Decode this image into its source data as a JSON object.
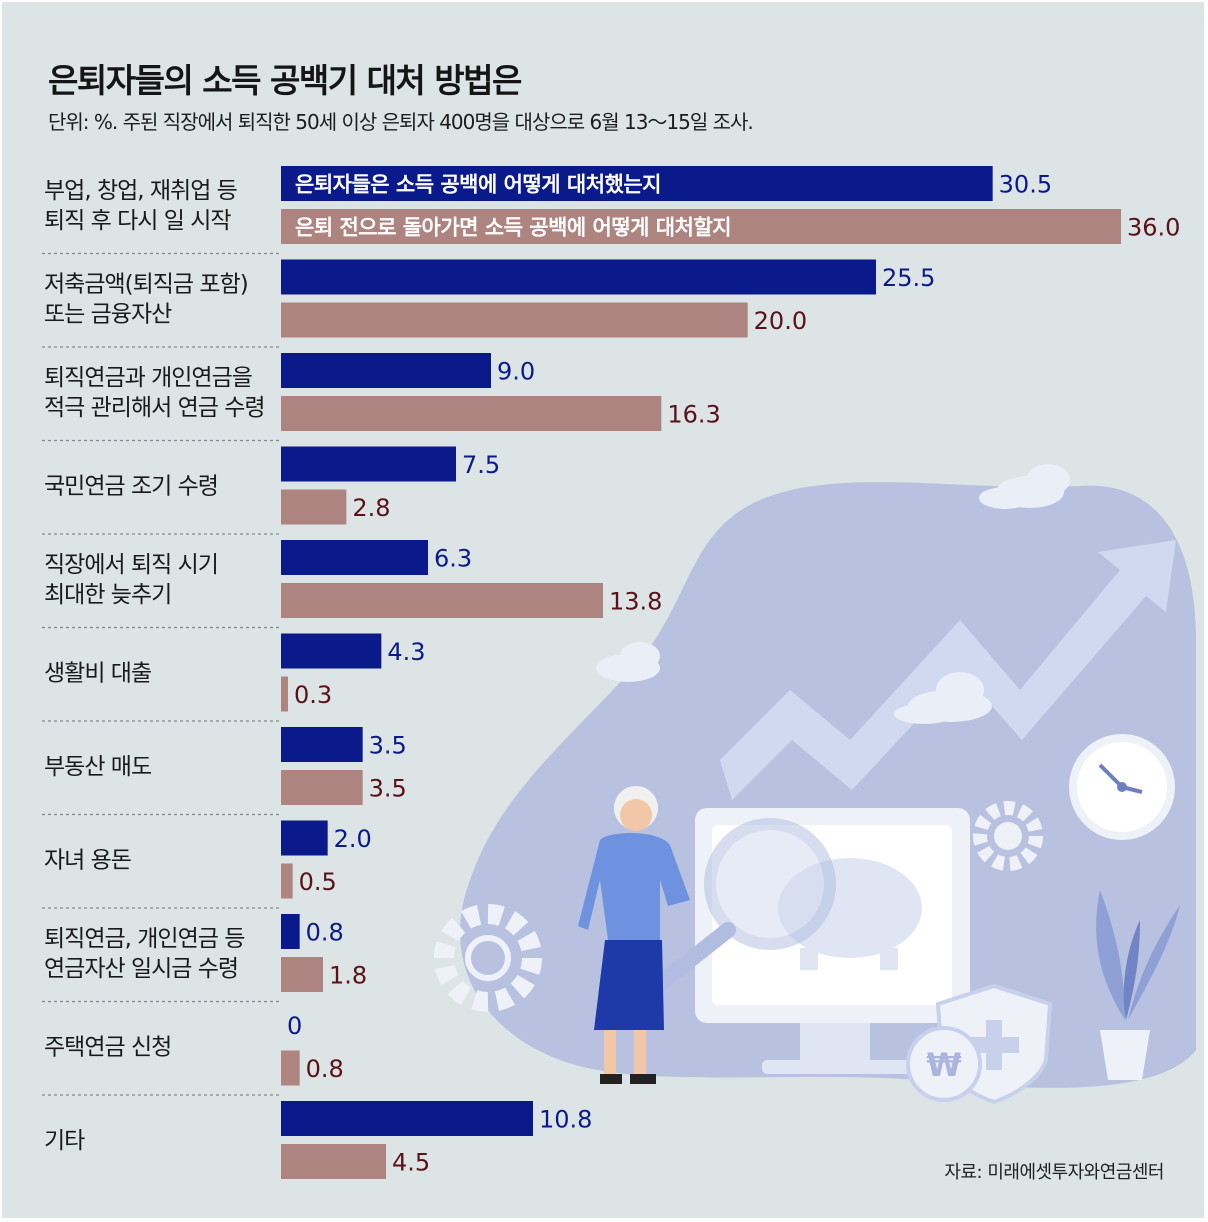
{
  "title": "은퇴자들의 소득 공백기 대처 방법은",
  "subtitle": "단위: %. 주된 직장에서 퇴직한 50세 이상 은퇴자 400명을 대상으로 6월 13～15일 조사.",
  "source": "자료: 미래에셋투자와연금센터",
  "chart_data": {
    "type": "bar",
    "orientation": "horizontal",
    "unit": "%",
    "categories": [
      [
        "부업, 창업, 재취업 등",
        "퇴직 후 다시 일 시작"
      ],
      [
        "저축금액(퇴직금 포함)",
        "또는 금융자산"
      ],
      [
        "퇴직연금과 개인연금을",
        "적극 관리해서 연금 수령"
      ],
      [
        "국민연금 조기 수령"
      ],
      [
        "직장에서 퇴직 시기",
        "최대한 늦추기"
      ],
      [
        "생활비 대출"
      ],
      [
        "부동산 매도"
      ],
      [
        "자녀 용돈"
      ],
      [
        "퇴직연금, 개인연금 등",
        "연금자산 일시금 수령"
      ],
      [
        "주택연금 신청"
      ],
      [
        "기타"
      ]
    ],
    "series": [
      {
        "name": "은퇴자들은 소득 공백에 어떻게 대처했는지",
        "color": "#0b1a8a",
        "values": [
          30.5,
          25.5,
          9.0,
          7.5,
          6.3,
          4.3,
          3.5,
          2.0,
          0.8,
          0,
          10.8
        ],
        "labels": [
          "30.5",
          "25.5",
          "9.0",
          "7.5",
          "6.3",
          "4.3",
          "3.5",
          "2.0",
          "0.8",
          "0",
          "10.8"
        ]
      },
      {
        "name": "은퇴 전으로 돌아가면 소득 공백에 어떻게 대처할지",
        "color": "#ae8480",
        "values": [
          36.0,
          20.0,
          16.3,
          2.8,
          13.8,
          0.3,
          3.5,
          0.5,
          1.8,
          0.8,
          4.5
        ],
        "labels": [
          "36.0",
          "20.0",
          "16.3",
          "2.8",
          "13.8",
          "0.3",
          "3.5",
          "0.5",
          "1.8",
          "0.8",
          "4.5"
        ]
      }
    ],
    "xlim": [
      0,
      36.0
    ],
    "grid": false,
    "legend": "inside-top-bars"
  }
}
